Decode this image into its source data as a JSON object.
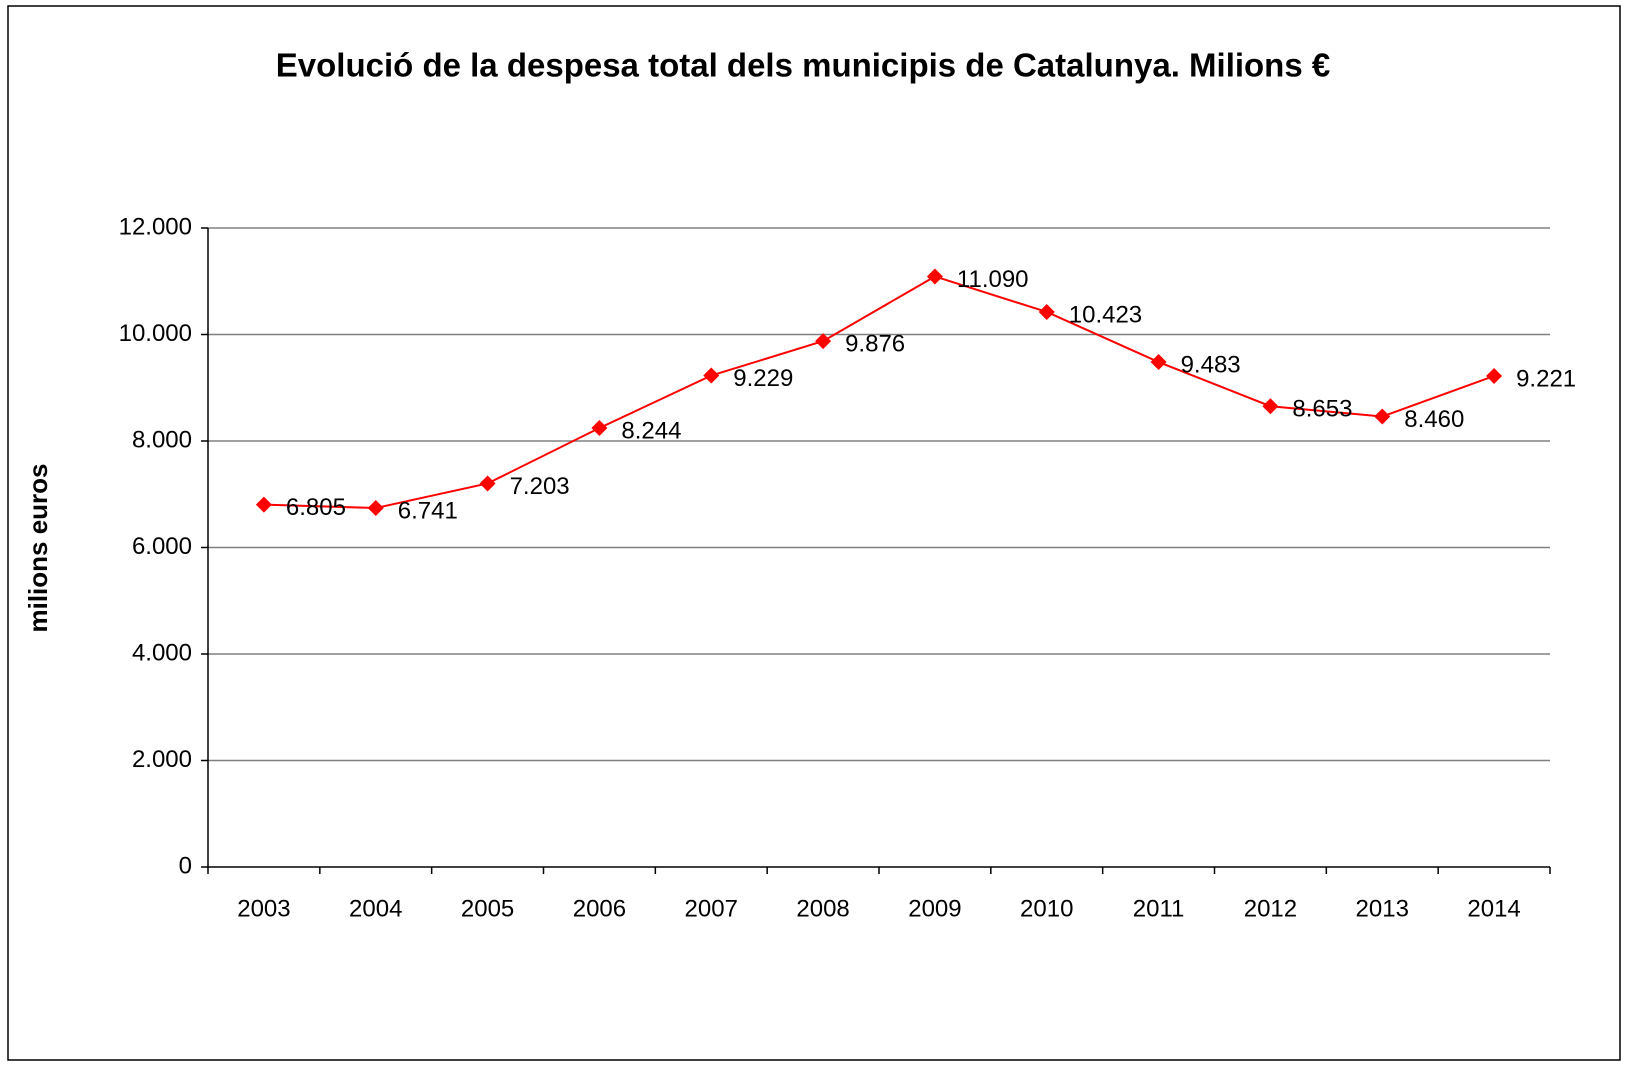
{
  "chart_data": {
    "type": "line",
    "title": "Evolució de la despesa total dels municipis de Catalunya. Milions €",
    "y_label": "milions euros",
    "categories": [
      "2003",
      "2004",
      "2005",
      "2006",
      "2007",
      "2008",
      "2009",
      "2010",
      "2011",
      "2012",
      "2013",
      "2014"
    ],
    "series": [
      {
        "name": "despesa total",
        "color": "#ff0000",
        "values": [
          6805,
          6741,
          7203,
          8244,
          9229,
          9876,
          11090,
          10423,
          9483,
          8653,
          8460,
          9221
        ],
        "value_labels": [
          "6.805",
          "6.741",
          "7.203",
          "8.244",
          "9.229",
          "9.876",
          "11.090",
          "10.423",
          "9.483",
          "8.653",
          "8.460",
          "9.221"
        ]
      }
    ],
    "ylim": [
      0,
      12000
    ],
    "yticks": [
      0,
      {
        "value": 2000,
        "label": "2.000"
      },
      {
        "value": 4000,
        "label": "4.000"
      },
      {
        "value": 6000,
        "label": "6.000"
      },
      {
        "value": 8000,
        "label": "8.000"
      },
      {
        "value": 10000,
        "label": "10.000"
      },
      {
        "value": 12000,
        "label": "12.000"
      }
    ],
    "grid": true,
    "legend": false
  }
}
